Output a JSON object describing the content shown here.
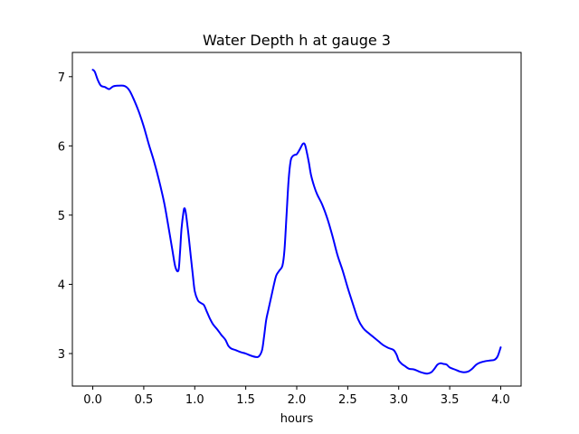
{
  "chart_data": {
    "type": "line",
    "title": "Water Depth h at gauge 3",
    "xlabel": "hours",
    "ylabel": "",
    "xlim": [
      -0.2,
      4.2
    ],
    "ylim": [
      2.53,
      7.35
    ],
    "grid": false,
    "xticks": [
      0.0,
      0.5,
      1.0,
      1.5,
      2.0,
      2.5,
      3.0,
      3.5,
      4.0
    ],
    "xtick_labels": [
      "0.0",
      "0.5",
      "1.0",
      "1.5",
      "2.0",
      "2.5",
      "3.0",
      "3.5",
      "4.0"
    ],
    "yticks": [
      3,
      4,
      5,
      6,
      7
    ],
    "ytick_labels": [
      "3",
      "4",
      "5",
      "6",
      "7"
    ],
    "series": [
      {
        "color": "#0000ff",
        "x": [
          0.0,
          0.02,
          0.05,
          0.08,
          0.12,
          0.16,
          0.2,
          0.25,
          0.3,
          0.33,
          0.36,
          0.4,
          0.45,
          0.5,
          0.55,
          0.6,
          0.65,
          0.7,
          0.74,
          0.78,
          0.81,
          0.84,
          0.855,
          0.87,
          0.89,
          0.9,
          0.91,
          0.92,
          0.94,
          0.96,
          0.98,
          1.0,
          1.03,
          1.06,
          1.09,
          1.12,
          1.15,
          1.18,
          1.22,
          1.26,
          1.3,
          1.33,
          1.36,
          1.4,
          1.45,
          1.5,
          1.55,
          1.6,
          1.63,
          1.66,
          1.68,
          1.7,
          1.72,
          1.75,
          1.78,
          1.8,
          1.83,
          1.86,
          1.88,
          1.9,
          1.92,
          1.94,
          1.96,
          1.98,
          2.0,
          2.03,
          2.06,
          2.08,
          2.1,
          2.12,
          2.14,
          2.17,
          2.2,
          2.25,
          2.3,
          2.35,
          2.4,
          2.45,
          2.5,
          2.55,
          2.6,
          2.65,
          2.7,
          2.75,
          2.8,
          2.85,
          2.9,
          2.95,
          2.98,
          3.0,
          3.03,
          3.06,
          3.1,
          3.15,
          3.2,
          3.24,
          3.28,
          3.32,
          3.35,
          3.38,
          3.41,
          3.44,
          3.47,
          3.5,
          3.55,
          3.6,
          3.64,
          3.68,
          3.72,
          3.76,
          3.8,
          3.85,
          3.9,
          3.94,
          3.97,
          4.0
        ],
        "y": [
          7.1,
          7.07,
          6.95,
          6.87,
          6.85,
          6.82,
          6.86,
          6.87,
          6.87,
          6.85,
          6.8,
          6.68,
          6.5,
          6.28,
          6.02,
          5.78,
          5.5,
          5.18,
          4.85,
          4.5,
          4.25,
          4.2,
          4.45,
          4.8,
          5.05,
          5.1,
          5.05,
          4.95,
          4.7,
          4.42,
          4.15,
          3.9,
          3.77,
          3.73,
          3.7,
          3.6,
          3.5,
          3.42,
          3.35,
          3.27,
          3.2,
          3.11,
          3.07,
          3.05,
          3.02,
          3.0,
          2.97,
          2.95,
          2.96,
          3.05,
          3.25,
          3.48,
          3.62,
          3.82,
          4.02,
          4.13,
          4.2,
          4.27,
          4.5,
          5.0,
          5.5,
          5.78,
          5.85,
          5.87,
          5.88,
          5.95,
          6.03,
          6.02,
          5.9,
          5.75,
          5.58,
          5.42,
          5.3,
          5.15,
          4.95,
          4.7,
          4.42,
          4.2,
          3.95,
          3.72,
          3.5,
          3.37,
          3.3,
          3.24,
          3.18,
          3.12,
          3.08,
          3.05,
          2.98,
          2.9,
          2.85,
          2.82,
          2.78,
          2.77,
          2.74,
          2.72,
          2.71,
          2.73,
          2.78,
          2.84,
          2.86,
          2.85,
          2.84,
          2.8,
          2.77,
          2.74,
          2.73,
          2.74,
          2.78,
          2.84,
          2.87,
          2.89,
          2.9,
          2.91,
          2.96,
          3.09
        ]
      }
    ]
  }
}
